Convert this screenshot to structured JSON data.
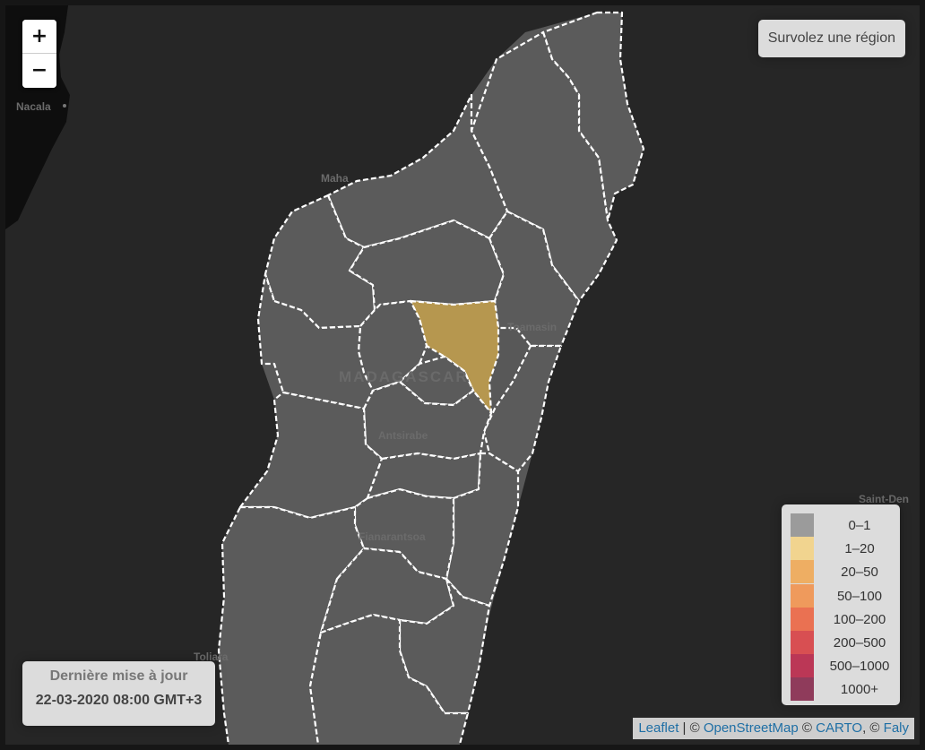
{
  "zoom": {
    "in_label": "+",
    "out_label": "−"
  },
  "info": {
    "text": "Survolez une région"
  },
  "update": {
    "title": "Dernière mise à jour",
    "date": "22-03-2020 08:00 GMT+3"
  },
  "places": {
    "nacala": "Nacala",
    "mahajanga": "Maha",
    "toamasina": "Toamasin",
    "country": "MADAGASCAR",
    "antsirabe": "Antsirabe",
    "fianarantsoa": "Fianarantsoa",
    "toliara": "Toliara",
    "saint_denis": "Saint-Den"
  },
  "legend": {
    "items": [
      {
        "label": "0–1",
        "color": "#9b9b9b"
      },
      {
        "label": "1–20",
        "color": "#f1d48f"
      },
      {
        "label": "20–50",
        "color": "#eeae63"
      },
      {
        "label": "50–100",
        "color": "#ef9a5c"
      },
      {
        "label": "100–200",
        "color": "#ea7152"
      },
      {
        "label": "200–500",
        "color": "#d84f52"
      },
      {
        "label": "500–1000",
        "color": "#bb3756"
      },
      {
        "label": "1000+",
        "color": "#8f3b5b"
      }
    ]
  },
  "highlighted_region_color": "#b6974f",
  "attribution": {
    "leaflet": "Leaflet",
    "sep1": " | © ",
    "osm": "OpenStreetMap",
    "sep2": " © ",
    "carto": "CARTO",
    "sep3": ", © ",
    "faly": "Faly"
  }
}
